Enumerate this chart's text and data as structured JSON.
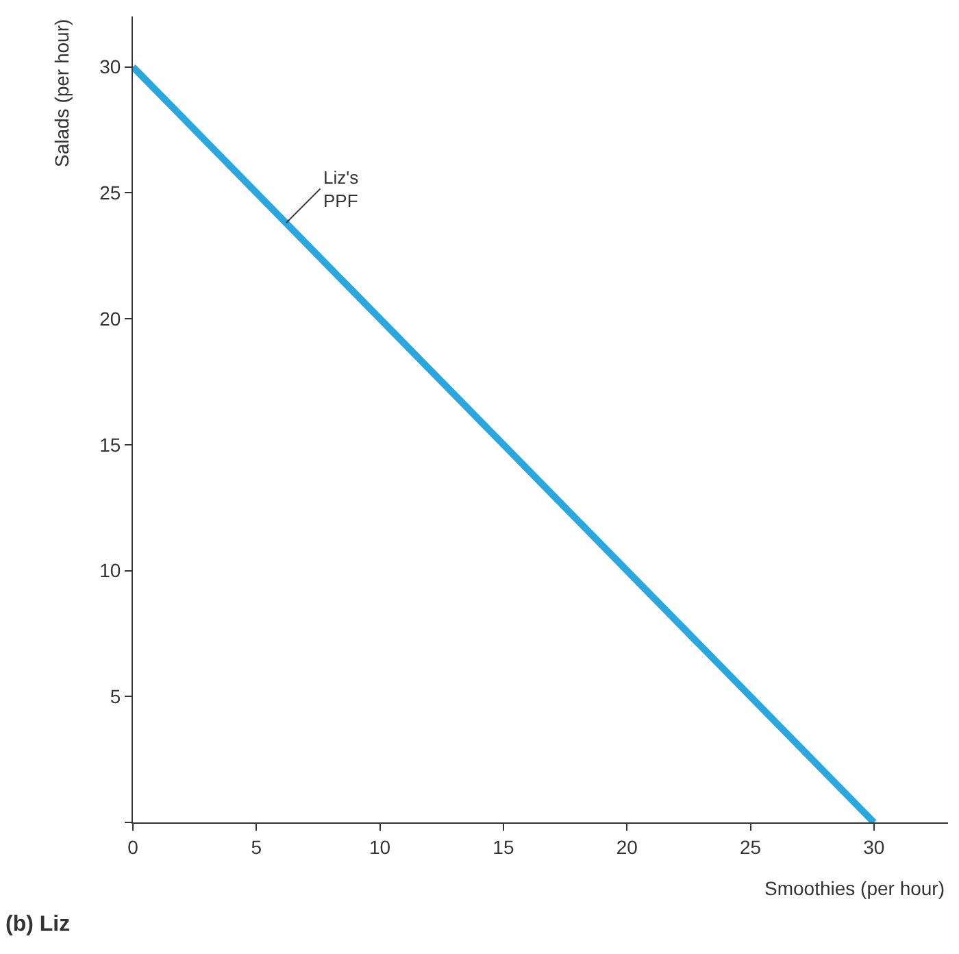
{
  "chart_data": {
    "type": "line",
    "x": [
      0,
      30
    ],
    "series": [
      {
        "color": "#2aa7df",
        "values": [
          30,
          0
        ]
      }
    ],
    "xlabel": "Smoothies (per hour)",
    "ylabel": "Salads (per hour)",
    "xlim": [
      0,
      33
    ],
    "ylim": [
      0,
      32
    ],
    "xticks": [
      0,
      5,
      10,
      15,
      20,
      25,
      30
    ],
    "yticks": [
      {
        "value": 0,
        "label": null
      },
      5,
      10,
      15,
      20,
      25,
      30
    ],
    "annotations": [
      {
        "text": "Liz's\nPPF",
        "x": 6.2,
        "y": 23.8
      },
      "(b) Liz"
    ],
    "marker": "none",
    "line_style": "solid"
  }
}
